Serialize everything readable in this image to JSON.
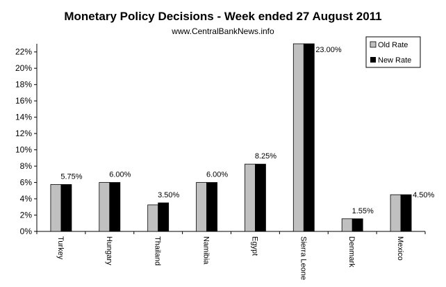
{
  "chart_data": {
    "type": "bar",
    "title": "Monetary Policy Decisions - Week ended 27 August 2011",
    "subtitle": "www.CentralBankNews.info",
    "xlabel": "",
    "ylabel": "",
    "ylim": [
      0,
      23
    ],
    "yticks": [
      "0%",
      "2%",
      "4%",
      "6%",
      "8%",
      "10%",
      "12%",
      "14%",
      "16%",
      "18%",
      "20%",
      "22%"
    ],
    "categories": [
      "Turkey",
      "Hungary",
      "Thailand",
      "Namibia",
      "Egypt",
      "Sierra Leone",
      "Denmark",
      "Mexico"
    ],
    "series": [
      {
        "name": "Old Rate",
        "color": "#c0c0c0",
        "values": [
          5.75,
          6.0,
          3.25,
          6.0,
          8.25,
          23.0,
          1.55,
          4.5
        ]
      },
      {
        "name": "New Rate",
        "color": "#000000",
        "values": [
          5.75,
          6.0,
          3.5,
          6.0,
          8.25,
          23.0,
          1.55,
          4.5
        ]
      }
    ],
    "data_labels": [
      "5.75%",
      "6.00%",
      "3.50%",
      "6.00%",
      "8.25%",
      "23.00%",
      "1.55%",
      "4.50%"
    ],
    "legend": "top-right",
    "grid": false
  }
}
